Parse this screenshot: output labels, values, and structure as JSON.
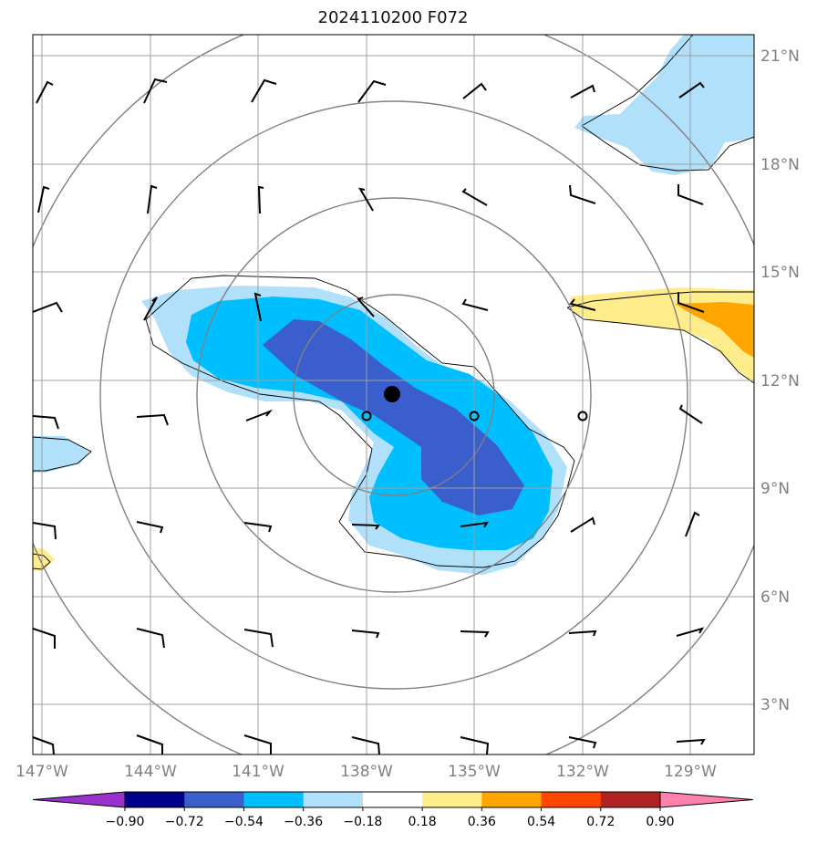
{
  "title": "2024110200 F072",
  "map": {
    "lon_labels": [
      "147°W",
      "144°W",
      "141°W",
      "138°W",
      "135°W",
      "132°W",
      "129°W"
    ],
    "lat_labels": [
      "21°N",
      "18°N",
      "15°N",
      "12°N",
      "9°N",
      "6°N",
      "3°N"
    ],
    "center_marker": "filled-circle",
    "grid_color": "#a0a0a0",
    "contour_color": "#808080"
  },
  "colorbar": {
    "tick_labels": [
      "−0.90",
      "−0.72",
      "−0.54",
      "−0.36",
      "−0.18",
      "0.18",
      "0.36",
      "0.54",
      "0.72",
      "0.90"
    ],
    "colors": [
      "#9932cc",
      "#00008b",
      "#3a5fcd",
      "#00bfff",
      "#b0e0fa",
      "#ffffff",
      "#ffec8b",
      "#ffa500",
      "#ff4500",
      "#b22222",
      "#ff82ab"
    ]
  }
}
